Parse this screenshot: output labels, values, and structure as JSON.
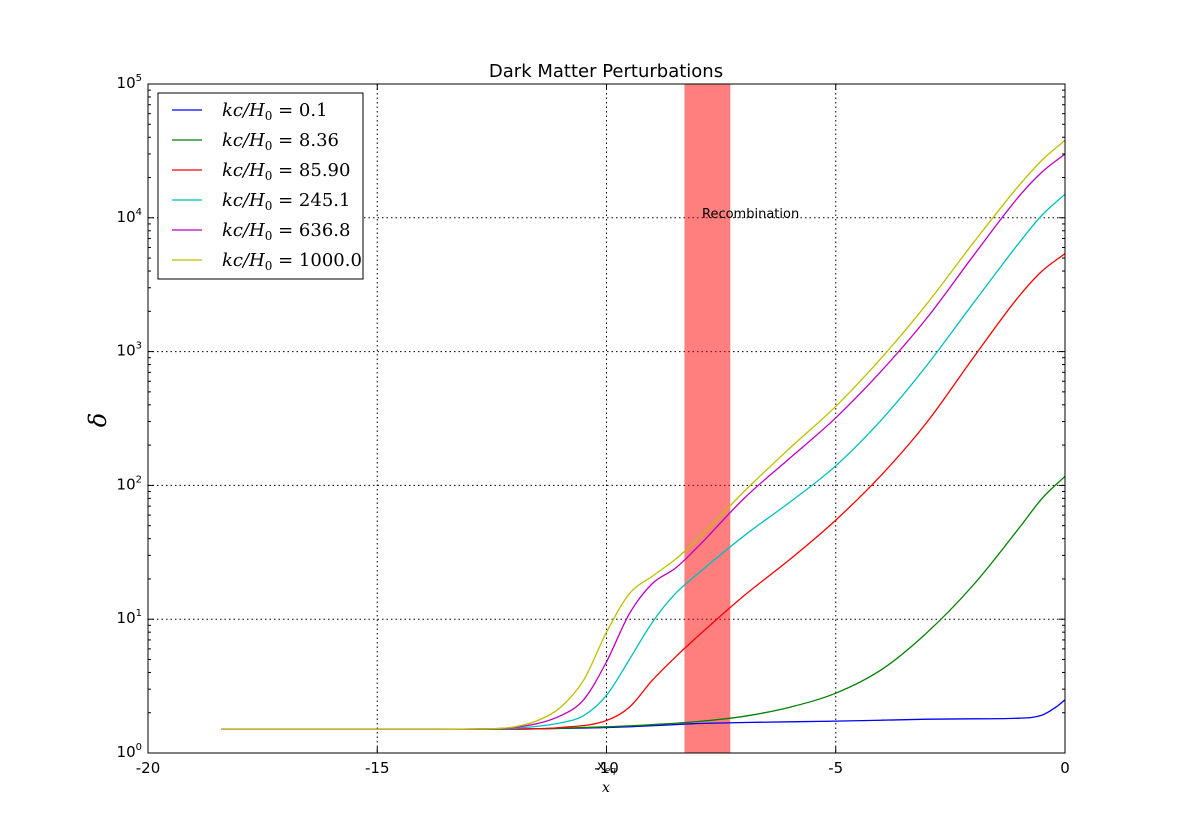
{
  "chart_data": {
    "type": "line",
    "title": "Dark Matter Perturbations",
    "xlabel": "x",
    "ylabel": "δ",
    "xlim": [
      -20,
      0
    ],
    "ylim": [
      1,
      100000
    ],
    "yscale": "log",
    "grid": true,
    "legend_position": "top-left",
    "x_ticks": [
      "-20",
      "-15",
      "-10",
      "-5",
      "0"
    ],
    "x_tick_values": [
      -20,
      -15,
      -10,
      -5,
      0
    ],
    "y_ticks": [
      {
        "base": "10",
        "exp": "0",
        "value": 1
      },
      {
        "base": "10",
        "exp": "1",
        "value": 10
      },
      {
        "base": "10",
        "exp": "2",
        "value": 100
      },
      {
        "base": "10",
        "exp": "3",
        "value": 1000
      },
      {
        "base": "10",
        "exp": "4",
        "value": 10000
      },
      {
        "base": "10",
        "exp": "5",
        "value": 100000
      }
    ],
    "annotations": {
      "recombination_label": "Recombination",
      "recombination_span": [
        -8.3,
        -7.3
      ],
      "recombination_label_at": [
        -9.6,
        10000
      ],
      "x_eq_base": "x",
      "x_eq_sub": "eq",
      "x_eq_at": -10
    },
    "series": [
      {
        "name": "kc/H0 = 0.1",
        "legend_value": "0.1",
        "color": "#0000ff",
        "x": [
          -18.4,
          -14,
          -12,
          -10,
          -9,
          -8,
          -7,
          -6,
          -5,
          -4,
          -3,
          -2,
          -1,
          -0.5,
          -0.2,
          0
        ],
        "y": [
          1.5,
          1.5,
          1.51,
          1.55,
          1.6,
          1.66,
          1.69,
          1.71,
          1.73,
          1.76,
          1.79,
          1.8,
          1.82,
          1.92,
          2.2,
          2.5
        ]
      },
      {
        "name": "kc/H0 = 8.36",
        "legend_value": "8.36",
        "color": "#008000",
        "x": [
          -18.4,
          -14,
          -12,
          -10,
          -9,
          -8,
          -7,
          -6,
          -5,
          -4,
          -3,
          -2,
          -1,
          -0.5,
          0
        ],
        "y": [
          1.5,
          1.5,
          1.51,
          1.57,
          1.63,
          1.72,
          1.88,
          2.2,
          2.8,
          4.2,
          8,
          18,
          48,
          80,
          117
        ]
      },
      {
        "name": "kc/H0 = 85.90",
        "legend_value": "85.90",
        "color": "#ff0000",
        "x": [
          -18.4,
          -14,
          -12,
          -11,
          -10,
          -9.5,
          -9,
          -8.5,
          -8,
          -7,
          -6,
          -5,
          -4,
          -3,
          -2,
          -1,
          -0.5,
          0
        ],
        "y": [
          1.5,
          1.5,
          1.51,
          1.55,
          1.75,
          2.2,
          3.5,
          5.2,
          7.5,
          15,
          28,
          55,
          120,
          300,
          900,
          2600,
          4000,
          5400
        ]
      },
      {
        "name": "kc/H0 = 245.1",
        "legend_value": "245.1",
        "color": "#00bfbf",
        "x": [
          -18.4,
          -14,
          -12.5,
          -12,
          -11,
          -10.5,
          -10,
          -9.5,
          -9,
          -8.5,
          -8,
          -7,
          -6,
          -5,
          -4,
          -3,
          -2,
          -1,
          -0.5,
          0
        ],
        "y": [
          1.5,
          1.5,
          1.51,
          1.53,
          1.68,
          1.9,
          2.7,
          5,
          9.5,
          15.5,
          22,
          42,
          75,
          140,
          310,
          800,
          2300,
          6500,
          10500,
          15000
        ]
      },
      {
        "name": "kc/H0 = 636.8",
        "legend_value": "636.8",
        "color": "#bf00bf",
        "x": [
          -18.4,
          -14,
          -12.5,
          -12,
          -11,
          -10.5,
          -10,
          -9.5,
          -9,
          -8.5,
          -8,
          -7,
          -6,
          -5,
          -4,
          -3,
          -2,
          -1,
          -0.5,
          0
        ],
        "y": [
          1.5,
          1.5,
          1.52,
          1.55,
          1.9,
          2.5,
          4.8,
          11,
          18.5,
          24,
          35,
          80,
          160,
          320,
          720,
          1800,
          5200,
          14500,
          22000,
          30000
        ]
      },
      {
        "name": "kc/H0 = 1000.0",
        "legend_value": "1000.0",
        "color": "#bfbf00",
        "x": [
          -18.4,
          -14,
          -12.5,
          -12,
          -11.5,
          -11,
          -10.5,
          -10,
          -9.5,
          -9,
          -8.5,
          -8,
          -7,
          -6,
          -5,
          -4,
          -3,
          -2,
          -1,
          -0.5,
          0
        ],
        "y": [
          1.5,
          1.5,
          1.52,
          1.57,
          1.75,
          2.2,
          3.5,
          8,
          15.5,
          21,
          28,
          40,
          90,
          190,
          390,
          900,
          2300,
          6500,
          17500,
          27000,
          38000
        ]
      }
    ]
  }
}
